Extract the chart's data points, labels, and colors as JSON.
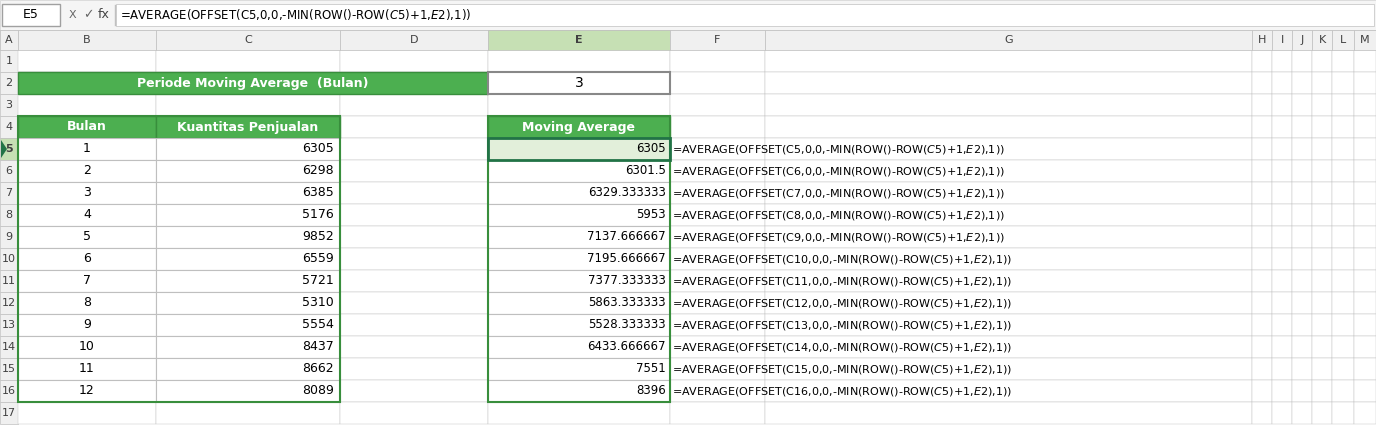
{
  "formula_bar_cell": "E5",
  "formula_bar_formula": "=AVERAGE(OFFSET(C5,0,0,-MIN(ROW()-ROW($C$5)+1,$E$2),1))",
  "col_headers": [
    "A",
    "B",
    "C",
    "D",
    "E",
    "F",
    "G",
    "H",
    "I",
    "J",
    "K",
    "L",
    "M"
  ],
  "row_headers": [
    "1",
    "2",
    "3",
    "4",
    "5",
    "6",
    "7",
    "8",
    "9",
    "10",
    "11",
    "12",
    "13",
    "14",
    "15",
    "16",
    "17"
  ],
  "periode_label": "Periode Moving Average  (Bulan)",
  "periode_value": "3",
  "table1_headers": [
    "Bulan",
    "Kuantitas Penjualan"
  ],
  "bulan": [
    1,
    2,
    3,
    4,
    5,
    6,
    7,
    8,
    9,
    10,
    11,
    12
  ],
  "kuantitas": [
    6305,
    6298,
    6385,
    5176,
    9852,
    6559,
    5721,
    5310,
    5554,
    8437,
    8662,
    8089
  ],
  "table2_header": "Moving Average",
  "moving_avg_str": [
    "6305",
    "6301.5",
    "6329.333333",
    "5953",
    "7137.666667",
    "7195.666667",
    "7377.333333",
    "5863.333333",
    "5528.333333",
    "6433.666667",
    "7551",
    "8396"
  ],
  "formulas": [
    "=AVERAGE(OFFSET(C5,0,0,-MIN(ROW()-ROW($C$5)+1,$E$2),1))",
    "=AVERAGE(OFFSET(C6,0,0,-MIN(ROW()-ROW($C$5)+1,$E$2),1))",
    "=AVERAGE(OFFSET(C7,0,0,-MIN(ROW()-ROW($C$5)+1,$E$2),1))",
    "=AVERAGE(OFFSET(C8,0,0,-MIN(ROW()-ROW($C$5)+1,$E$2),1))",
    "=AVERAGE(OFFSET(C9,0,0,-MIN(ROW()-ROW($C$5)+1,$E$2),1))",
    "=AVERAGE(OFFSET(C10,0,0,-MIN(ROW()-ROW($C$5)+1,$E$2),1))",
    "=AVERAGE(OFFSET(C11,0,0,-MIN(ROW()-ROW($C$5)+1,$E$2),1))",
    "=AVERAGE(OFFSET(C12,0,0,-MIN(ROW()-ROW($C$5)+1,$E$2),1))",
    "=AVERAGE(OFFSET(C13,0,0,-MIN(ROW()-ROW($C$5)+1,$E$2),1))",
    "=AVERAGE(OFFSET(C14,0,0,-MIN(ROW()-ROW($C$5)+1,$E$2),1))",
    "=AVERAGE(OFFSET(C15,0,0,-MIN(ROW()-ROW($C$5)+1,$E$2),1))",
    "=AVERAGE(OFFSET(C16,0,0,-MIN(ROW()-ROW($C$5)+1,$E$2),1))"
  ],
  "green_color": "#4CAF50",
  "green_dark": "#388E3C",
  "white": "#ffffff",
  "col_header_bg": "#f0f0f0",
  "row_header_bg": "#f0f0f0",
  "grid_color": "#bfbfbf",
  "toolbar_bg": "#f5f5f5",
  "selected_col_bg": "#c6e0b4",
  "selected_row_bg": "#c6e0b4",
  "selected_cell_bg": "#e2efda"
}
